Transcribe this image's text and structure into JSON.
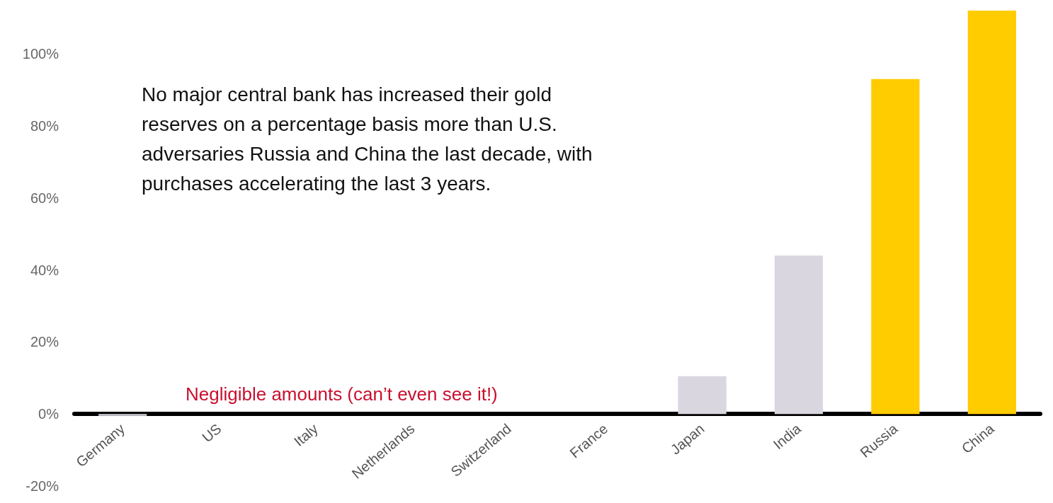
{
  "chart_data": {
    "type": "bar",
    "categories": [
      "Germany",
      "US",
      "Italy",
      "Netherlands",
      "Switzerland",
      "France",
      "Japan",
      "India",
      "Russia",
      "China"
    ],
    "values": [
      -0.5,
      0,
      0,
      0,
      0,
      0,
      10.5,
      44,
      93,
      112
    ],
    "colors": [
      "#d9d6e0",
      "#d9d6e0",
      "#d9d6e0",
      "#d9d6e0",
      "#d9d6e0",
      "#d9d6e0",
      "#d9d6e0",
      "#d9d6e0",
      "#ffcc00",
      "#ffcc00"
    ],
    "ylim": [
      -20,
      113
    ],
    "yticks": [
      {
        "value": -20,
        "label": "-20%"
      },
      {
        "value": 0,
        "label": "0%"
      },
      {
        "value": 20,
        "label": "20%"
      },
      {
        "value": 40,
        "label": "40%"
      },
      {
        "value": 60,
        "label": "60%"
      },
      {
        "value": 80,
        "label": "80%"
      },
      {
        "value": 100,
        "label": "100%"
      }
    ],
    "annotations": [
      "No major central bank has increased their gold reserves on a percentage basis more than U.S. adversaries Russia and China the last decade, with purchases accelerating the last 3 years.",
      "Negligible amounts (can’t even see it!)"
    ]
  }
}
